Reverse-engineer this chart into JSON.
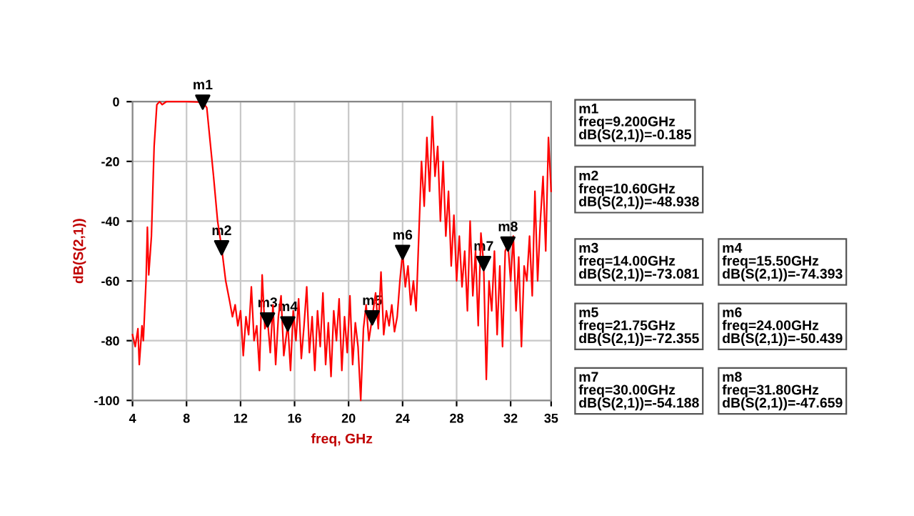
{
  "chart_data": {
    "type": "line",
    "xlabel": "freq, GHz",
    "ylabel": "dB(S(2,1))",
    "xlim": [
      4,
      35
    ],
    "xticks": [
      4,
      8,
      12,
      16,
      20,
      24,
      28,
      32,
      35
    ],
    "ylim": [
      -100,
      0
    ],
    "yticks": [
      -100,
      -80,
      -60,
      -40,
      -20,
      0
    ],
    "grid": true,
    "marker": "none",
    "line_style": "solid",
    "series": [
      {
        "color": "#ff0000",
        "x": [
          4.0,
          4.2,
          4.4,
          4.5,
          4.7,
          4.8,
          5.0,
          5.1,
          5.2,
          5.4,
          5.6,
          5.8,
          6.0,
          6.2,
          6.5,
          7,
          8,
          9.2,
          9.5,
          10.0,
          10.3,
          10.6,
          10.9,
          11.2,
          11.4,
          11.6,
          11.8,
          12.0,
          12.2,
          12.4,
          12.6,
          12.8,
          13.0,
          13.2,
          13.4,
          13.6,
          13.8,
          14.0,
          14.2,
          14.4,
          14.6,
          14.8,
          15.0,
          15.2,
          15.5,
          15.7,
          15.9,
          16.1,
          16.3,
          16.5,
          16.7,
          16.9,
          17.1,
          17.3,
          17.5,
          17.7,
          17.9,
          18.1,
          18.3,
          18.5,
          18.7,
          18.9,
          19.1,
          19.3,
          19.5,
          19.7,
          19.9,
          20.1,
          20.3,
          20.5,
          20.7,
          20.9,
          21.1,
          21.3,
          21.5,
          21.75,
          22.0,
          22.2,
          22.4,
          22.6,
          22.8,
          23.0,
          23.2,
          23.4,
          23.6,
          23.8,
          24.0,
          24.2,
          24.4,
          24.6,
          24.8,
          25.0,
          25.2,
          25.4,
          25.6,
          25.8,
          26.0,
          26.2,
          26.4,
          26.6,
          26.8,
          27.0,
          27.2,
          27.4,
          27.6,
          27.8,
          28.0,
          28.2,
          28.4,
          28.6,
          28.8,
          29.0,
          29.2,
          29.4,
          29.6,
          29.8,
          30.0,
          30.2,
          30.4,
          30.6,
          30.8,
          31.0,
          31.2,
          31.4,
          31.6,
          31.8,
          32.0,
          32.2,
          32.4,
          32.6,
          32.8,
          33.0,
          33.2,
          33.4,
          33.6,
          33.8,
          34.0,
          34.2,
          34.4,
          34.6,
          34.8,
          35.0
        ],
        "values": [
          -78,
          -82,
          -76,
          -88,
          -75,
          -80,
          -60,
          -42,
          -58,
          -45,
          -15,
          -1,
          0,
          -1,
          0,
          0,
          0,
          -0.185,
          -2,
          -25,
          -40,
          -48.938,
          -60,
          -67,
          -72,
          -68,
          -75,
          -70,
          -85,
          -72,
          -78,
          -62,
          -80,
          -75,
          -90,
          -58,
          -76,
          -73.081,
          -84,
          -68,
          -88,
          -72,
          -65,
          -85,
          -74.393,
          -90,
          -70,
          -80,
          -66,
          -86,
          -75,
          -62,
          -84,
          -72,
          -90,
          -70,
          -82,
          -64,
          -88,
          -74,
          -92,
          -70,
          -80,
          -66,
          -90,
          -72,
          -84,
          -65,
          -88,
          -74,
          -82,
          -100,
          -76,
          -68,
          -80,
          -72.355,
          -64,
          -76,
          -57,
          -78,
          -70,
          -75,
          -68,
          -77,
          -72,
          -60,
          -50.439,
          -62,
          -55,
          -68,
          -60,
          -70,
          -45,
          -20,
          -35,
          -12,
          -30,
          -5,
          -25,
          -15,
          -40,
          -20,
          -45,
          -30,
          -55,
          -38,
          -60,
          -45,
          -62,
          -50,
          -70,
          -40,
          -65,
          -50,
          -75,
          -44,
          -54.188,
          -93,
          -60,
          -70,
          -50,
          -78,
          -55,
          -82,
          -50,
          -47.659,
          -60,
          -45,
          -70,
          -52,
          -82,
          -55,
          -60,
          -45,
          -65,
          -30,
          -60,
          -40,
          -25,
          -50,
          -12,
          -30
        ]
      }
    ],
    "annotations": [
      {
        "text": "m1",
        "x": 9.2,
        "y": -0.185
      },
      {
        "text": "m2",
        "x": 10.6,
        "y": -48.938
      },
      {
        "text": "m3",
        "x": 14.0,
        "y": -73.081
      },
      {
        "text": "m4",
        "x": 15.5,
        "y": -74.393
      },
      {
        "text": "m5",
        "x": 21.75,
        "y": -72.355
      },
      {
        "text": "m6",
        "x": 24.0,
        "y": -50.439
      },
      {
        "text": "m7",
        "x": 30.0,
        "y": -54.188
      },
      {
        "text": "m8",
        "x": 31.8,
        "y": -47.659
      },
      "m1\nfreq=9.200GHz\ndB(S(2,1))=-0.185",
      "m2\nfreq=10.60GHz\ndB(S(2,1))=-48.938",
      "m3\nfreq=14.00GHz\ndB(S(2,1))=-73.081",
      "m4\nfreq=15.50GHz\ndB(S(2,1))=-74.393",
      "m5\nfreq=21.75GHz\ndB(S(2,1))=-72.355",
      "m6\nfreq=24.00GHz\ndB(S(2,1))=-50.439",
      "m7\nfreq=30.00GHz\ndB(S(2,1))=-54.188",
      "m8\nfreq=31.80GHz\ndB(S(2,1))=-47.659"
    ]
  }
}
